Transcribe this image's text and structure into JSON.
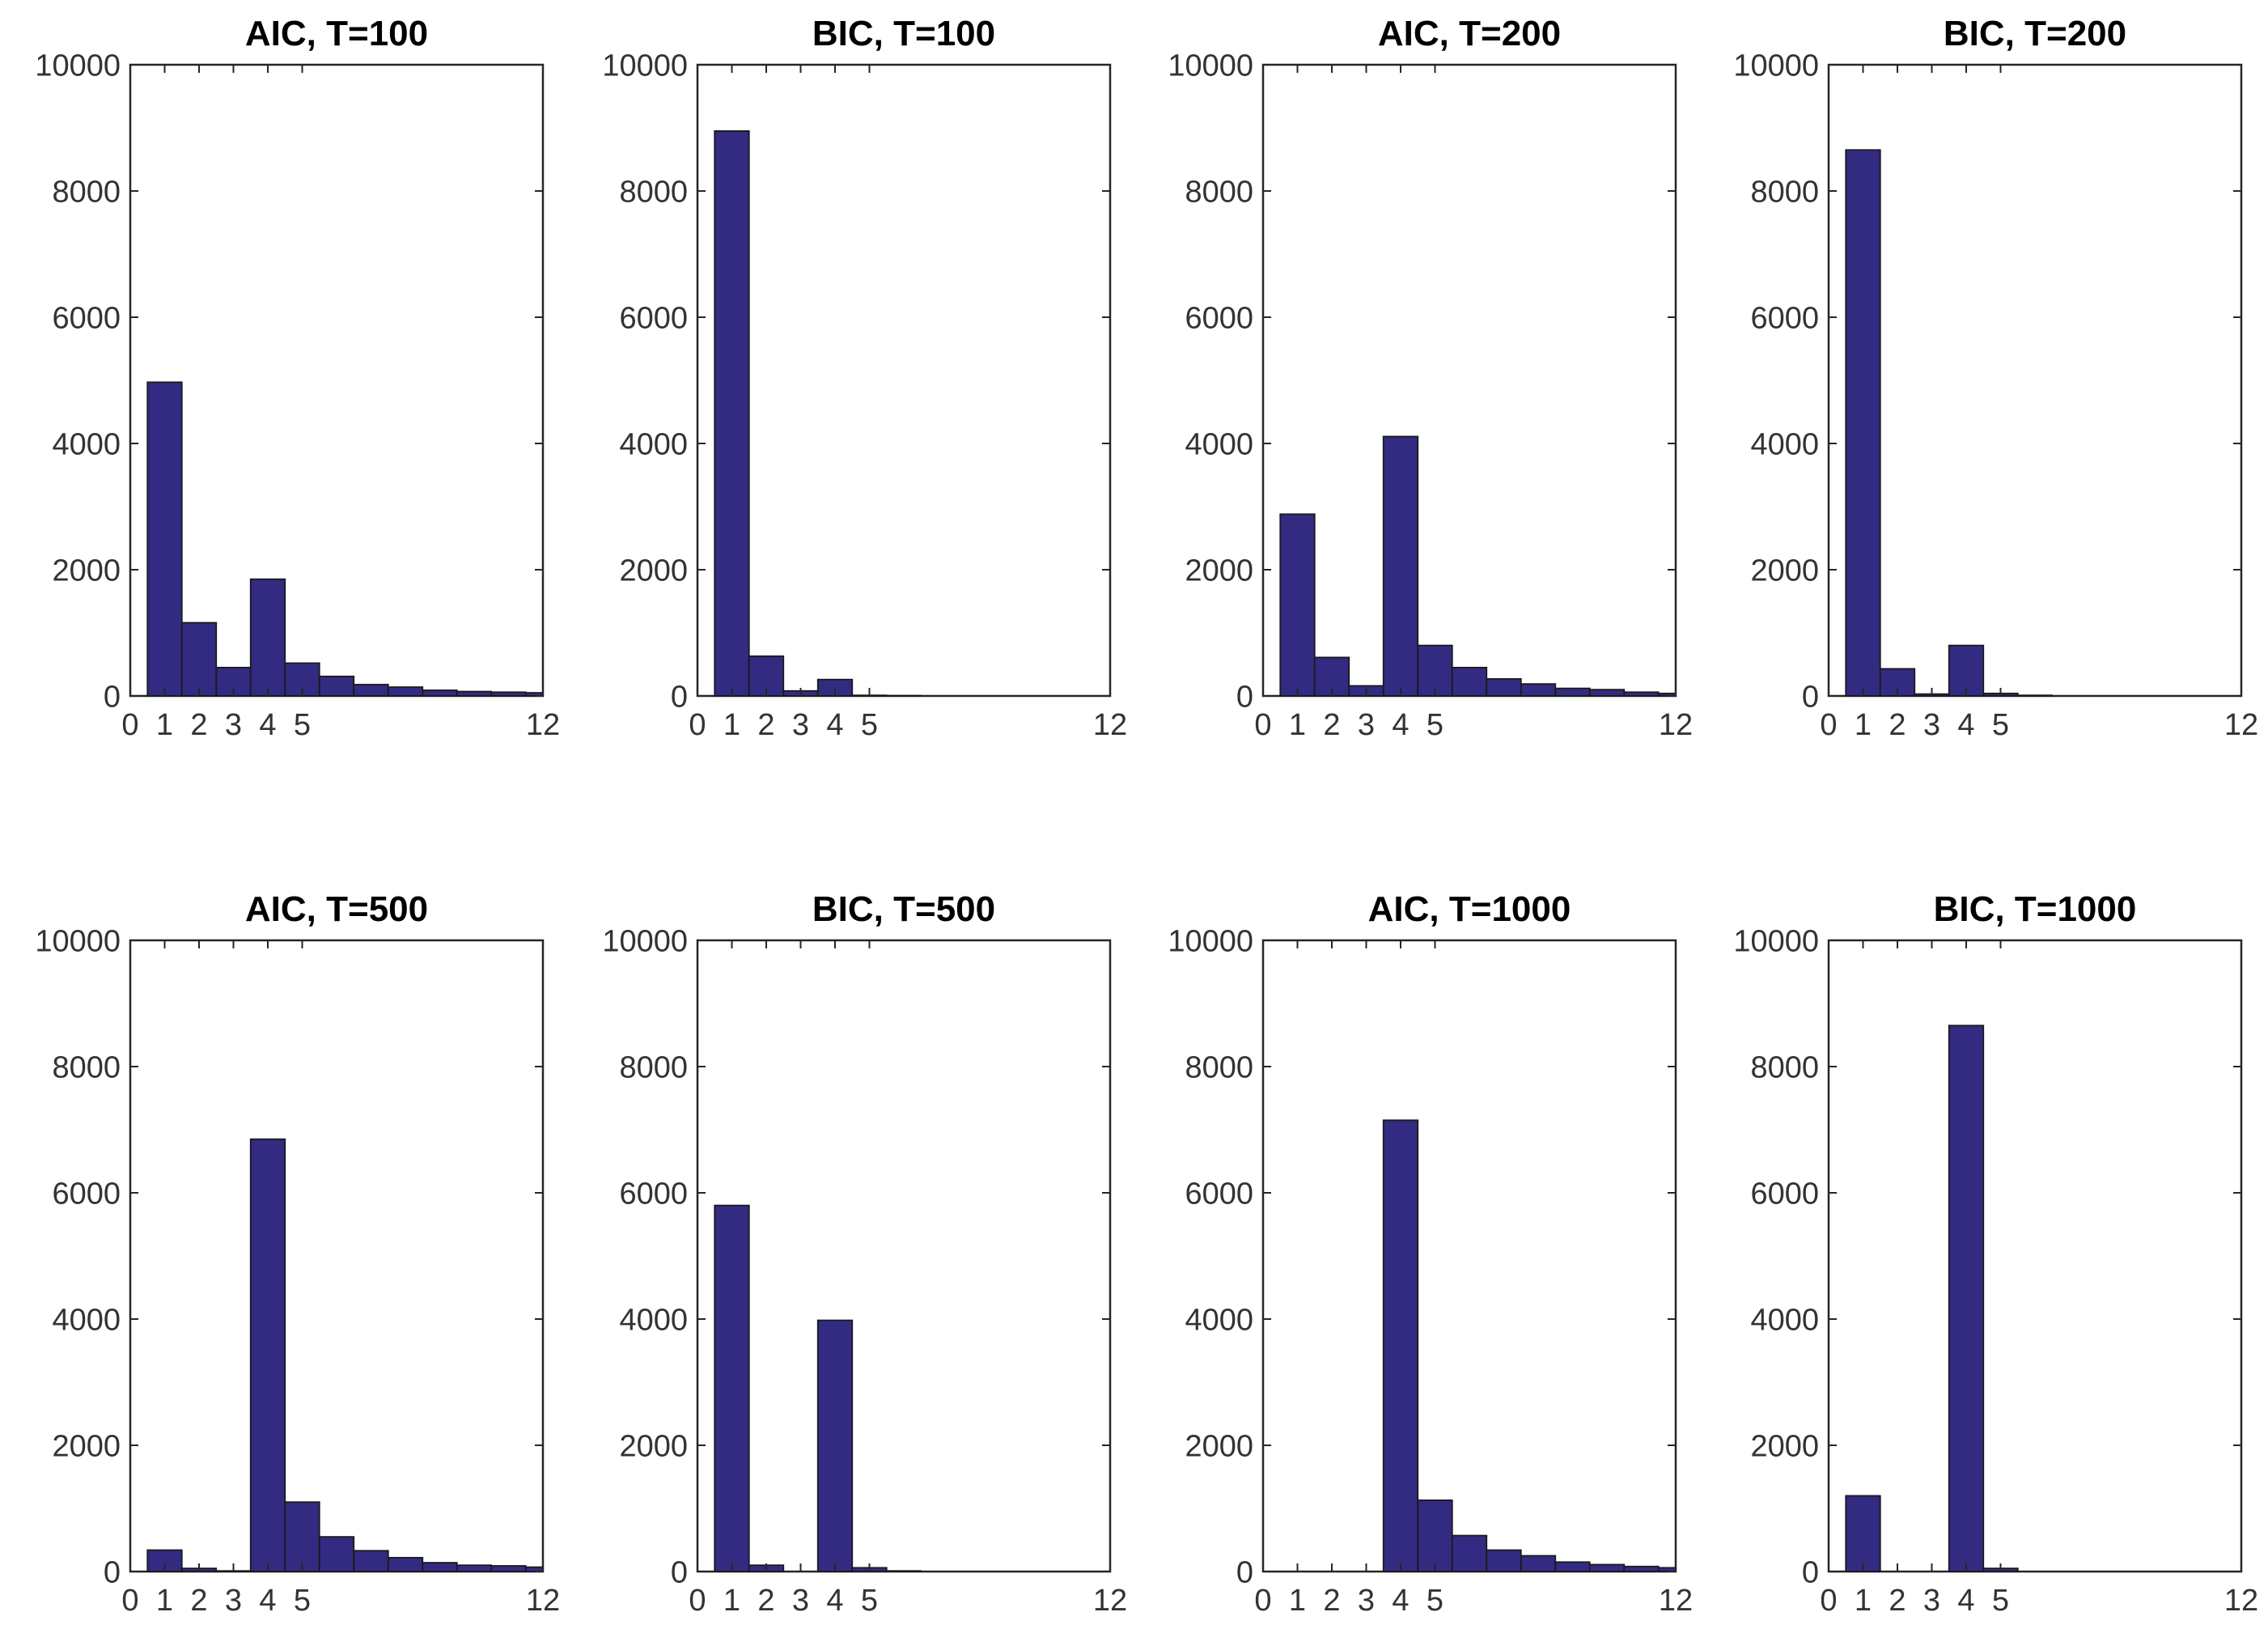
{
  "chart_data": [
    {
      "type": "bar",
      "title": "AIC, T=100",
      "xlim": [
        0,
        12
      ],
      "ylim": [
        0,
        10000
      ],
      "xticks": [
        0,
        1,
        2,
        3,
        4,
        5,
        12
      ],
      "yticks": [
        0,
        2000,
        4000,
        6000,
        8000,
        10000
      ],
      "bin_edges": [
        0.5,
        1.5,
        2.5,
        3.5,
        4.5,
        5.5,
        6.5,
        7.5,
        8.5,
        9.5,
        10.5,
        11.5,
        12
      ],
      "values": [
        4970,
        1160,
        450,
        1850,
        520,
        310,
        180,
        140,
        90,
        70,
        60,
        50
      ]
    },
    {
      "type": "bar",
      "title": "BIC, T=100",
      "xlim": [
        0,
        12
      ],
      "ylim": [
        0,
        10000
      ],
      "xticks": [
        0,
        1,
        2,
        3,
        4,
        5,
        12
      ],
      "yticks": [
        0,
        2000,
        4000,
        6000,
        8000,
        10000
      ],
      "bin_edges": [
        0.5,
        1.5,
        2.5,
        3.5,
        4.5,
        5.5,
        6.5,
        7.5,
        8.5,
        9.5,
        10.5,
        11.5,
        12
      ],
      "values": [
        8950,
        630,
        80,
        260,
        10,
        5,
        0,
        0,
        0,
        0,
        0,
        0
      ]
    },
    {
      "type": "bar",
      "title": "AIC, T=200",
      "xlim": [
        0,
        12
      ],
      "ylim": [
        0,
        10000
      ],
      "xticks": [
        0,
        1,
        2,
        3,
        4,
        5,
        12
      ],
      "yticks": [
        0,
        2000,
        4000,
        6000,
        8000,
        10000
      ],
      "bin_edges": [
        0.5,
        1.5,
        2.5,
        3.5,
        4.5,
        5.5,
        6.5,
        7.5,
        8.5,
        9.5,
        10.5,
        11.5,
        12
      ],
      "values": [
        2880,
        610,
        160,
        4110,
        800,
        450,
        270,
        190,
        120,
        100,
        60,
        40
      ]
    },
    {
      "type": "bar",
      "title": "BIC, T=200",
      "xlim": [
        0,
        12
      ],
      "ylim": [
        0,
        10000
      ],
      "xticks": [
        0,
        1,
        2,
        3,
        4,
        5,
        12
      ],
      "yticks": [
        0,
        2000,
        4000,
        6000,
        8000,
        10000
      ],
      "bin_edges": [
        0.5,
        1.5,
        2.5,
        3.5,
        4.5,
        5.5,
        6.5,
        7.5,
        8.5,
        9.5,
        10.5,
        11.5,
        12
      ],
      "values": [
        8650,
        430,
        30,
        800,
        40,
        10,
        0,
        0,
        0,
        0,
        0,
        0
      ]
    },
    {
      "type": "bar",
      "title": "AIC, T=500",
      "xlim": [
        0,
        12
      ],
      "ylim": [
        0,
        10000
      ],
      "xticks": [
        0,
        1,
        2,
        3,
        4,
        5,
        12
      ],
      "yticks": [
        0,
        2000,
        4000,
        6000,
        8000,
        10000
      ],
      "bin_edges": [
        0.5,
        1.5,
        2.5,
        3.5,
        4.5,
        5.5,
        6.5,
        7.5,
        8.5,
        9.5,
        10.5,
        11.5,
        12
      ],
      "values": [
        340,
        50,
        10,
        6850,
        1100,
        550,
        330,
        220,
        140,
        100,
        90,
        70
      ]
    },
    {
      "type": "bar",
      "title": "BIC, T=500",
      "xlim": [
        0,
        12
      ],
      "ylim": [
        0,
        10000
      ],
      "xticks": [
        0,
        1,
        2,
        3,
        4,
        5,
        12
      ],
      "yticks": [
        0,
        2000,
        4000,
        6000,
        8000,
        10000
      ],
      "bin_edges": [
        0.5,
        1.5,
        2.5,
        3.5,
        4.5,
        5.5,
        6.5,
        7.5,
        8.5,
        9.5,
        10.5,
        11.5,
        12
      ],
      "values": [
        5800,
        100,
        0,
        3980,
        60,
        10,
        0,
        0,
        0,
        0,
        0,
        0
      ]
    },
    {
      "type": "bar",
      "title": "AIC, T=1000",
      "xlim": [
        0,
        12
      ],
      "ylim": [
        0,
        10000
      ],
      "xticks": [
        0,
        1,
        2,
        3,
        4,
        5,
        12
      ],
      "yticks": [
        0,
        2000,
        4000,
        6000,
        8000,
        10000
      ],
      "bin_edges": [
        0.5,
        1.5,
        2.5,
        3.5,
        4.5,
        5.5,
        6.5,
        7.5,
        8.5,
        9.5,
        10.5,
        11.5,
        12
      ],
      "values": [
        0,
        0,
        0,
        7150,
        1130,
        570,
        340,
        250,
        150,
        110,
        80,
        60
      ]
    },
    {
      "type": "bar",
      "title": "BIC, T=1000",
      "xlim": [
        0,
        12
      ],
      "ylim": [
        0,
        10000
      ],
      "xticks": [
        0,
        1,
        2,
        3,
        4,
        5,
        12
      ],
      "yticks": [
        0,
        2000,
        4000,
        6000,
        8000,
        10000
      ],
      "bin_edges": [
        0.5,
        1.5,
        2.5,
        3.5,
        4.5,
        5.5,
        6.5,
        7.5,
        8.5,
        9.5,
        10.5,
        11.5,
        12
      ],
      "values": [
        1200,
        0,
        0,
        8650,
        50,
        0,
        0,
        0,
        0,
        0,
        0,
        0
      ]
    }
  ],
  "colors": {
    "bar_fill": "#332b82",
    "bar_edge": "#1a1a1a",
    "axis": "#262626"
  }
}
